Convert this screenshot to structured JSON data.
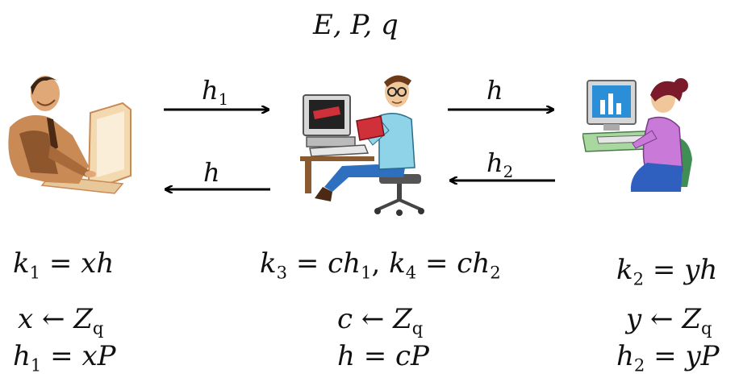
{
  "title": "E, P, q",
  "arrows": {
    "alice_to_server": "h",
    "alice_to_server_sub": "1",
    "server_to_alice": "h",
    "server_to_bob": "h",
    "bob_to_server": "h",
    "bob_to_server_sub": "2"
  },
  "left": {
    "key_lhs": "k",
    "key_sub": "1",
    "key_rhs": "xh",
    "rand_var": "x",
    "rand_set": "Z",
    "rand_set_sub": "q",
    "pub_lhs": "h",
    "pub_sub": "1",
    "pub_rhs": "xP"
  },
  "middle": {
    "k3_lhs": "k",
    "k3_sub": "3",
    "k3_rhs": "ch",
    "k3_rhs_sub": "1",
    "k4_lhs": "k",
    "k4_sub": "4",
    "k4_rhs": "ch",
    "k4_rhs_sub": "2",
    "rand_var": "c",
    "rand_set": "Z",
    "rand_set_sub": "q",
    "pub_lhs": "h",
    "pub_rhs": "cP"
  },
  "right": {
    "key_lhs": "k",
    "key_sub": "2",
    "key_rhs": "yh",
    "rand_var": "y",
    "rand_set": "Z",
    "rand_set_sub": "q",
    "pub_lhs": "h",
    "pub_sub": "2",
    "pub_rhs": "yP"
  },
  "colors": {
    "alice_skin": "#c98a55",
    "alice_shadow": "#7a4420",
    "server_shirt": "#8fd3e8",
    "server_pants": "#2f6fbf",
    "server_book": "#d0303a",
    "bob_shirt": "#c97ad8",
    "bob_chair": "#3f8f55",
    "bob_screen": "#2a8fd6",
    "arrow": "#000000"
  },
  "icons": [
    "businessman-at-computer-icon",
    "nerd-at-computer-icon",
    "woman-at-computer-icon"
  ]
}
